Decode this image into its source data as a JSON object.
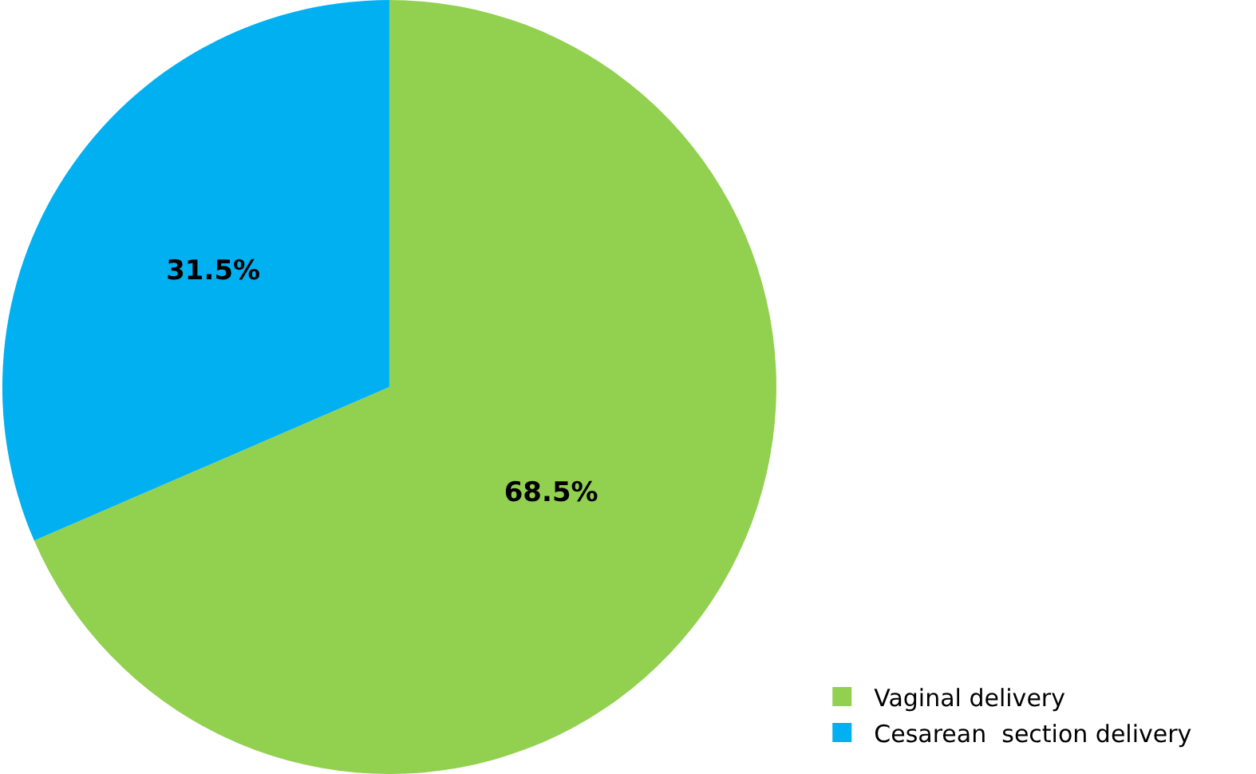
{
  "chart_data": {
    "type": "pie",
    "categories": [
      "Vaginal delivery",
      "Cesarean  section delivery"
    ],
    "values": [
      68.5,
      31.5
    ],
    "colors": [
      "#92d050",
      "#00b0f0"
    ],
    "value_labels": [
      "68.5%",
      "31.5%"
    ],
    "legend": "bottom right"
  }
}
